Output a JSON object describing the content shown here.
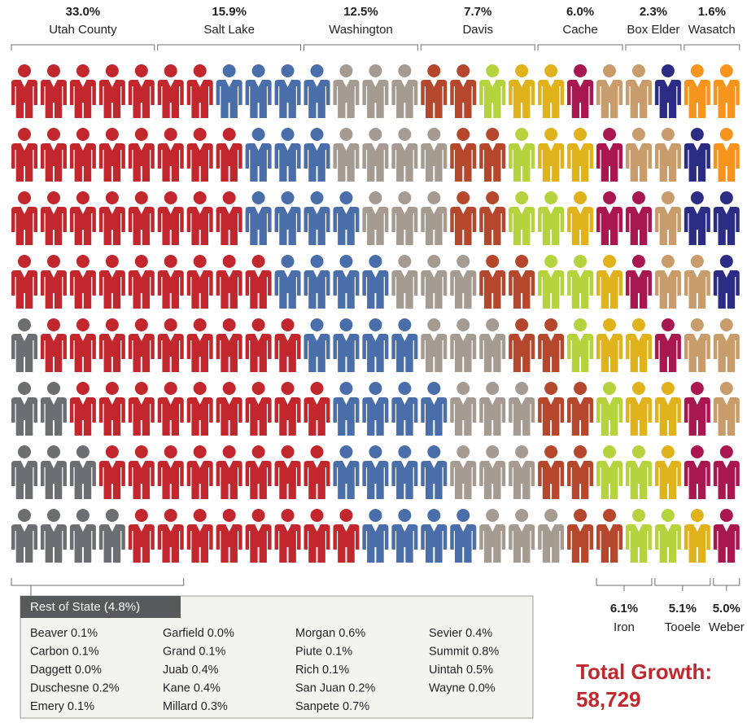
{
  "chart_data": {
    "type": "pictograph",
    "series": [
      {
        "name": "Rest of State",
        "value": 4.8,
        "value_label": "(4.8%)",
        "color": "#6d6e71"
      },
      {
        "name": "Utah County",
        "value": 33.0,
        "value_label": "33.0%",
        "color": "#c1272d"
      },
      {
        "name": "Salt Lake",
        "value": 15.9,
        "value_label": "15.9%",
        "color": "#4a6ea9"
      },
      {
        "name": "Washington",
        "value": 12.5,
        "value_label": "12.5%",
        "color": "#a59b91"
      },
      {
        "name": "Davis",
        "value": 7.7,
        "value_label": "7.7%",
        "color": "#b5472c"
      },
      {
        "name": "Cache",
        "value": 6.0,
        "value_label": "6.0%",
        "color": "#b5d33d"
      },
      {
        "name": "Iron",
        "value": 6.1,
        "value_label": "6.1%",
        "color": "#e0b31d"
      },
      {
        "name": "Tooele",
        "value": 5.1,
        "value_label": "5.1%",
        "color": "#a8174f"
      },
      {
        "name": "Weber",
        "value": 5.0,
        "value_label": "5.0%",
        "color": "#c89d6b"
      },
      {
        "name": "Box Elder",
        "value": 2.3,
        "value_label": "2.3%",
        "color": "#2b2d84"
      },
      {
        "name": "Wasatch",
        "value": 1.6,
        "value_label": "1.6%",
        "color": "#f7941d"
      }
    ],
    "rest_of_state": [
      [
        "Beaver 0.1%",
        "Carbon 0.1%",
        "Daggett 0.0%",
        "Duschesne 0.2%",
        "Emery 0.1%"
      ],
      [
        "Garfield 0.0%",
        "Grand 0.1%",
        "Juab 0.4%",
        "Kane 0.4%",
        "Millard 0.3%"
      ],
      [
        "Morgan 0.6%",
        "Piute 0.1%",
        "Rich 0.1%",
        "San Juan 0.2%",
        "Sanpete 0.7%"
      ],
      [
        "Sevier 0.4%",
        "Summit 0.8%",
        "Uintah 0.5%",
        "Wayne 0.0%"
      ]
    ],
    "total_label": "Total Growth:",
    "total": "58,729"
  }
}
